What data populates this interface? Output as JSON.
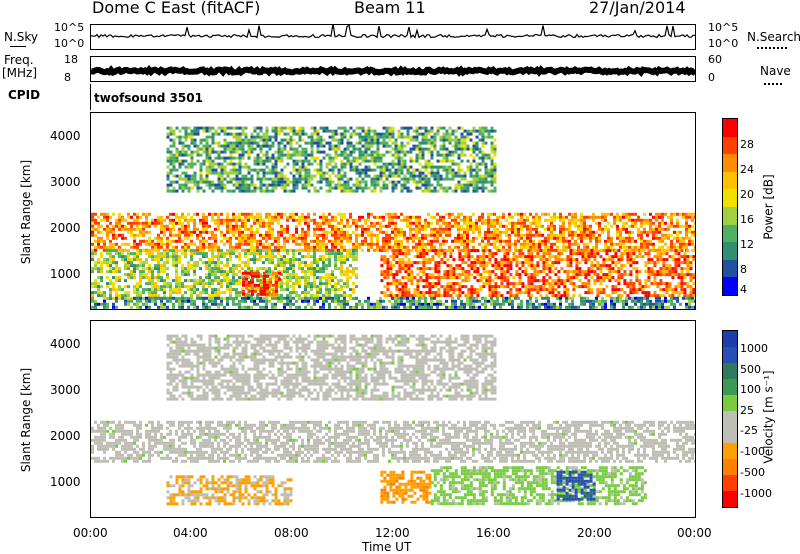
{
  "header": {
    "station": "Dome C East (fitACF)",
    "beam": "Beam 11",
    "date": "27/Jan/2014"
  },
  "strip": {
    "nsky_label": "N.Sky",
    "nsky_ticks": [
      "10^5",
      "10^0"
    ],
    "nsearch_label": "N.Search",
    "nsearch_ticks": [
      "10^5",
      "10^0"
    ],
    "freq_label_1": "Freq.",
    "freq_label_2": "[MHz]",
    "freq_ticks": [
      "18",
      "8"
    ],
    "nave_label": "Nave",
    "nave_ticks": [
      "60",
      "0"
    ],
    "cpid_label": "CPID",
    "cpid_value": "twofsound 3501"
  },
  "axes": {
    "ylabel": "Slant Range [km]",
    "yticks": [
      "4000",
      "3000",
      "2000",
      "1000"
    ],
    "xticks": [
      "00:00",
      "04:00",
      "08:00",
      "12:00",
      "16:00",
      "20:00",
      "00:00"
    ],
    "xlabel": "Time UT"
  },
  "colorbars": {
    "power": {
      "label": "Power [dB]",
      "ticks": [
        "28",
        "24",
        "20",
        "16",
        "12",
        "8",
        "4"
      ],
      "colors": [
        "#ff0000",
        "#ff4000",
        "#ff8c00",
        "#ffc000",
        "#f0e000",
        "#a0d040",
        "#50b060",
        "#2f8f6f",
        "#2050a0",
        "#0000ff"
      ]
    },
    "velocity": {
      "label": "Velocity [m s⁻¹]",
      "ticks": [
        "1000",
        "500",
        "100",
        "25",
        "-25",
        "-100",
        "-500",
        "-1000"
      ],
      "colors": [
        "#1e3caa",
        "#2850b4",
        "#2e7a5a",
        "#3c9a58",
        "#78cc40",
        "#bebeb4",
        "#bebeb4",
        "#ffa000",
        "#ff8000",
        "#ff4000",
        "#ff0000"
      ]
    }
  },
  "chart_data": [
    {
      "type": "heatmap",
      "title": "Power",
      "xlabel": "Time UT",
      "ylabel": "Slant Range [km]",
      "xlim": [
        "00:00",
        "24:00"
      ],
      "ylim": [
        180,
        4500
      ],
      "colorbar": {
        "label": "Power [dB]",
        "range": [
          0,
          30
        ]
      },
      "regions": [
        {
          "t": [
            0,
            24
          ],
          "range": [
            1500,
            2300
          ],
          "value": 22
        },
        {
          "t": [
            0,
            10.5
          ],
          "range": [
            400,
            1500
          ],
          "value": 14
        },
        {
          "t": [
            11.5,
            24
          ],
          "range": [
            500,
            1500
          ],
          "value": 24
        },
        {
          "t": [
            6,
            7.5
          ],
          "range": [
            500,
            1000
          ],
          "value": 28
        },
        {
          "t": [
            3,
            16
          ],
          "range": [
            2800,
            4200
          ],
          "value": 10
        },
        {
          "t": [
            0,
            24
          ],
          "range": [
            200,
            450
          ],
          "value": 8
        }
      ]
    },
    {
      "type": "heatmap",
      "title": "Velocity",
      "xlabel": "Time UT",
      "ylabel": "Slant Range [km]",
      "xlim": [
        "00:00",
        "24:00"
      ],
      "ylim": [
        180,
        4500
      ],
      "colorbar": {
        "label": "Velocity [m s-1]",
        "range": [
          -1000,
          1000
        ]
      },
      "regions": [
        {
          "t": [
            0,
            24
          ],
          "range": [
            1400,
            2300
          ],
          "value": 0
        },
        {
          "t": [
            3,
            8
          ],
          "range": [
            500,
            1100
          ],
          "value": -300
        },
        {
          "t": [
            11.5,
            13.5
          ],
          "range": [
            500,
            1200
          ],
          "value": -400
        },
        {
          "t": [
            13.5,
            22
          ],
          "range": [
            500,
            1300
          ],
          "value": 150
        },
        {
          "t": [
            18.5,
            20
          ],
          "range": [
            600,
            1200
          ],
          "value": 700
        },
        {
          "t": [
            3,
            16
          ],
          "range": [
            2800,
            4200
          ],
          "value": 0
        }
      ]
    }
  ]
}
